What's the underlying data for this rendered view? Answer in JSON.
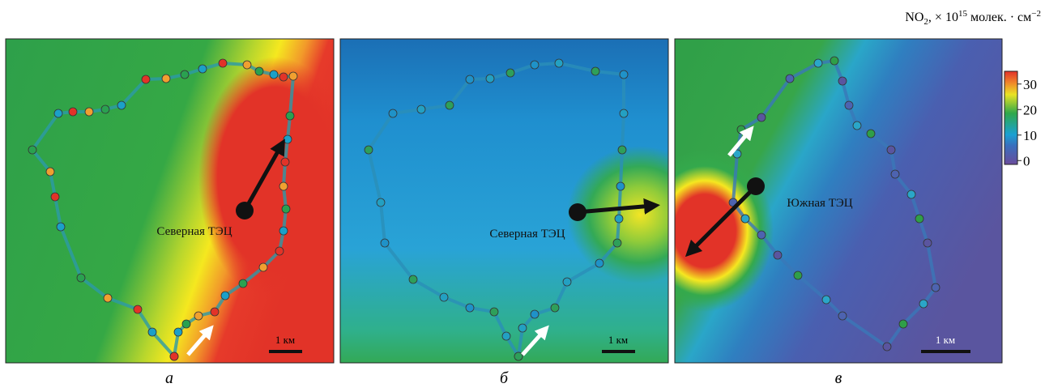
{
  "units_label": {
    "species": "NO",
    "species_sub": "2",
    "factor": ", × 10",
    "factor_sup": "15",
    "unit": " молек. · см",
    "unit_sup": "−2"
  },
  "colorbar": {
    "lim": [
      -1.5,
      35
    ],
    "ticks": [
      0,
      10,
      20,
      30
    ]
  },
  "panels": [
    {
      "label": "а",
      "plant": "Северная ТЭЦ",
      "scale": "1 км"
    },
    {
      "label": "б",
      "plant": "Северная ТЭЦ",
      "scale": "1 км"
    },
    {
      "label": "в",
      "plant": "Южная ТЭЦ",
      "scale": "1 км"
    }
  ]
}
